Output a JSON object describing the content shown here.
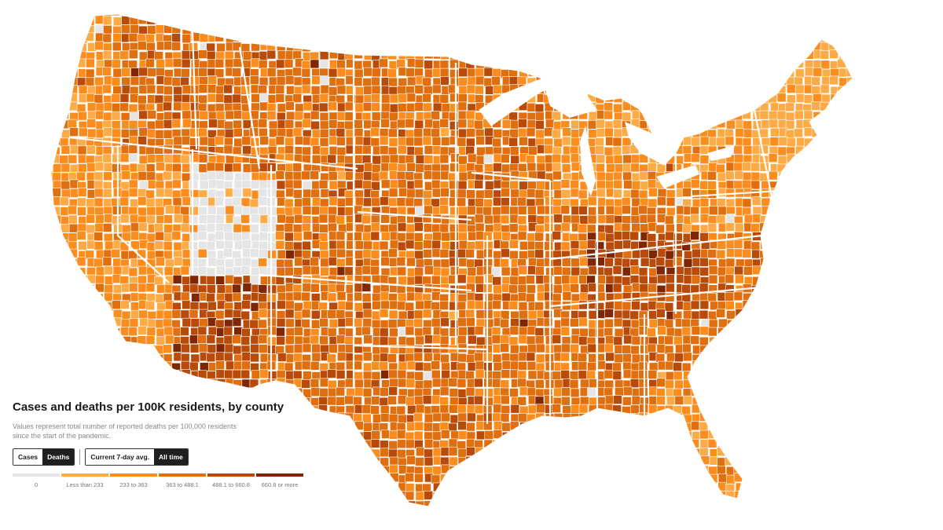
{
  "title": "Cases and deaths per 100K residents, by county",
  "subtitle": "Values represent total number of reported deaths per 100,000 residents since the start of the pandemic.",
  "metric_toggle": {
    "options": [
      "Cases",
      "Deaths"
    ],
    "selected": "Deaths"
  },
  "period_toggle": {
    "options": [
      "Current 7-day avg.",
      "All time"
    ],
    "selected": "All time"
  },
  "legend": [
    {
      "label": "0",
      "color": "#e5e5e5"
    },
    {
      "label": "Less than 233",
      "color": "#fdab47"
    },
    {
      "label": "233 to 363",
      "color": "#fb8c1e"
    },
    {
      "label": "363 to 488.1",
      "color": "#e06f10"
    },
    {
      "label": "488.1 to 660.8",
      "color": "#b84b0a"
    },
    {
      "label": "660.8 or more",
      "color": "#7f2704"
    }
  ],
  "colors": {
    "border": "#ffffff",
    "palette": [
      "#e5e5e5",
      "#fdab47",
      "#fb8c1e",
      "#e06f10",
      "#b84b0a",
      "#7f2704"
    ]
  },
  "map": {
    "region": "contiguous-united-states",
    "description_level": "county-choropleth",
    "regional_tendency": {
      "pacific-northwest": 2,
      "california": 2,
      "nevada": 2,
      "utah": 0,
      "arizona": 4,
      "new-mexico": 3,
      "montana-wyoming": 3,
      "dakotas": 3,
      "nebraska-kansas": 3,
      "texas": 3,
      "oklahoma": 3,
      "midwest": 3,
      "great-lakes": 2,
      "southeast": 3,
      "appalachia": 4,
      "northeast": 2,
      "new-england": 1,
      "florida": 2
    }
  }
}
